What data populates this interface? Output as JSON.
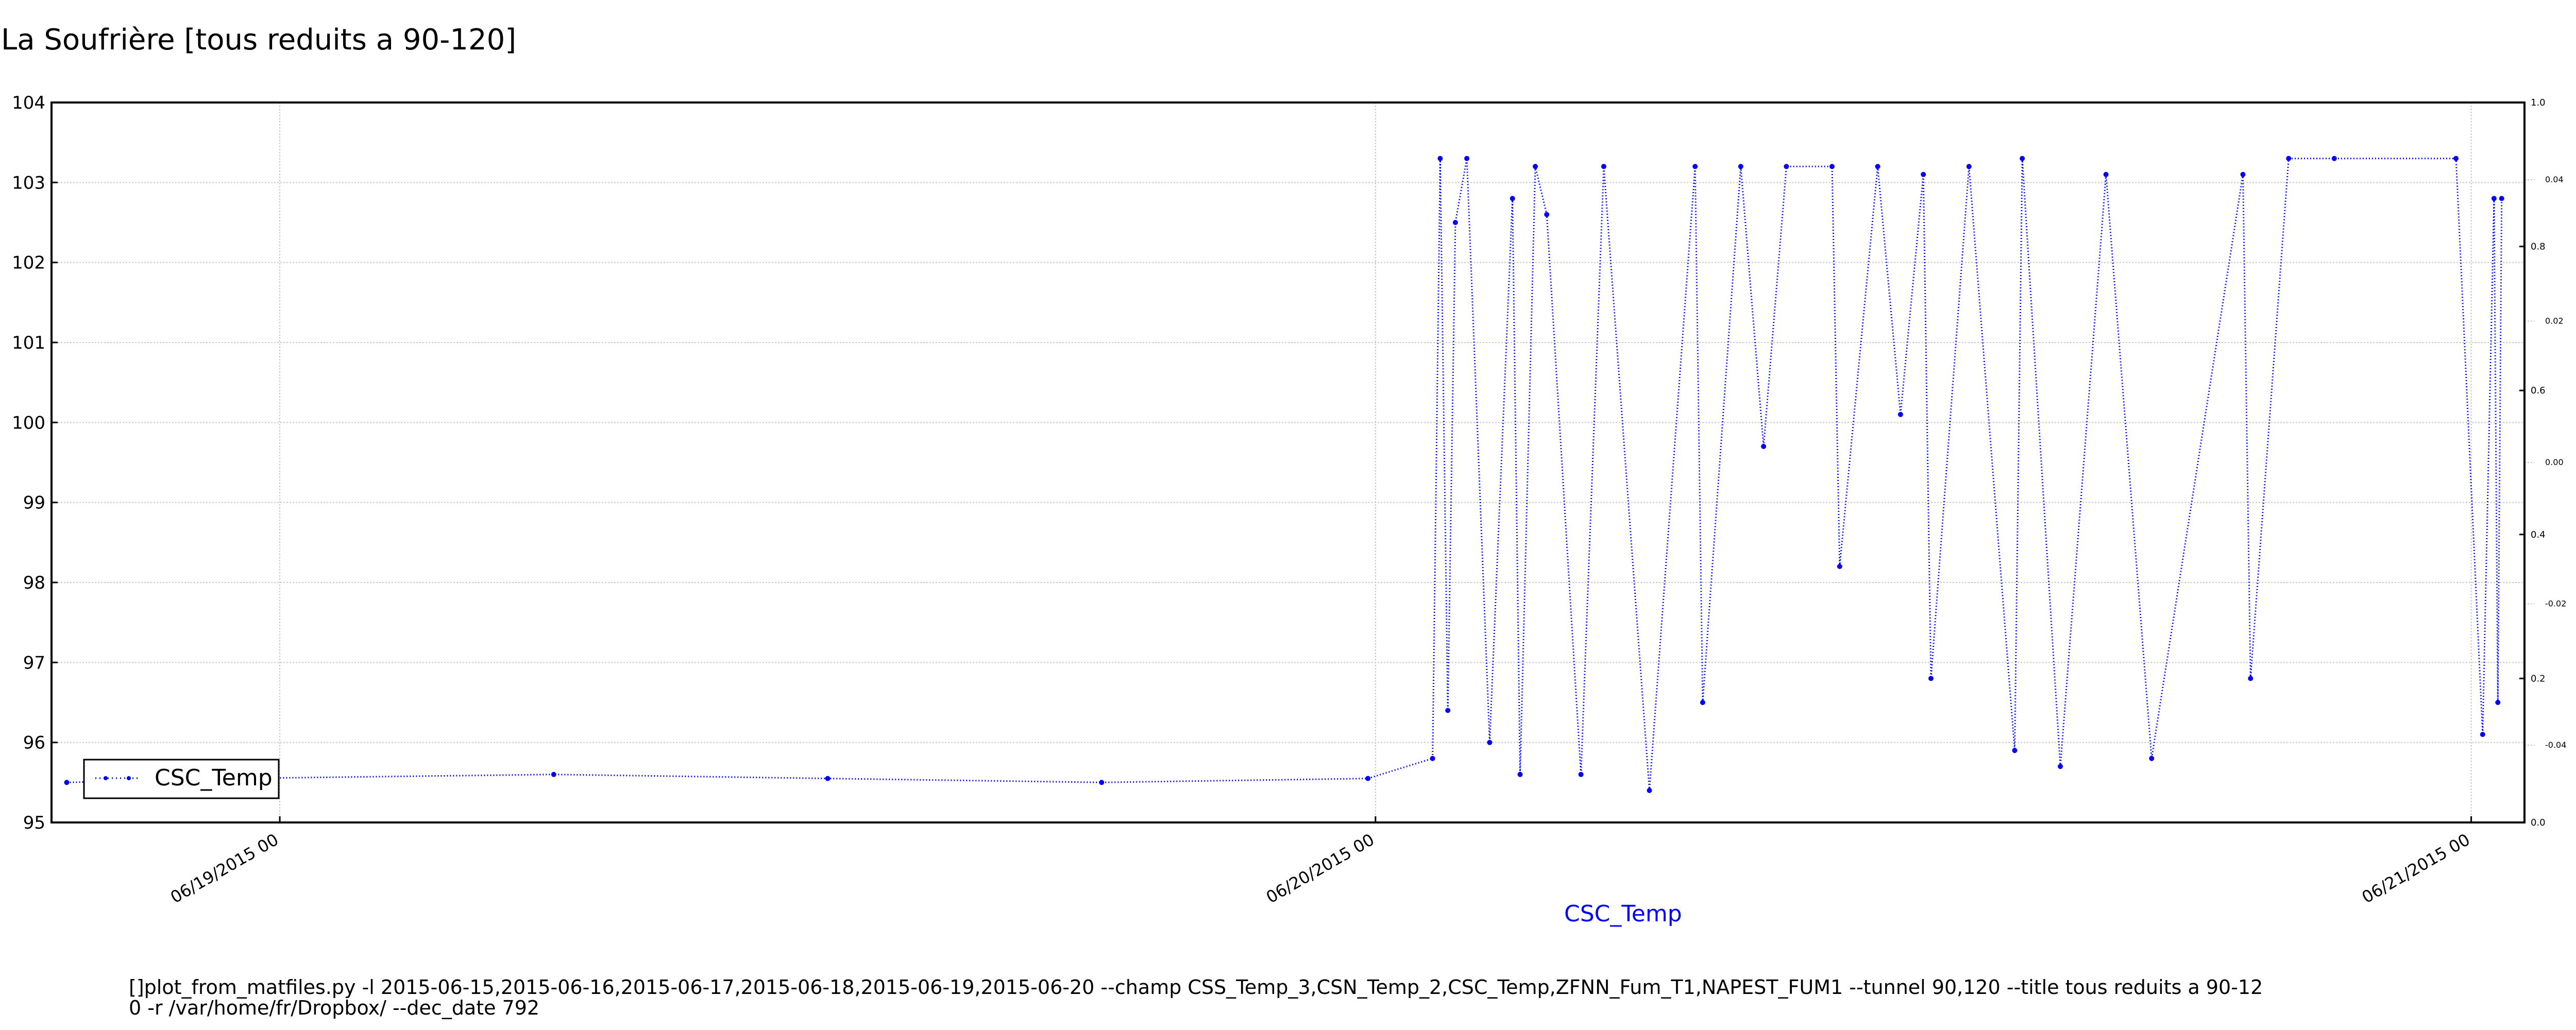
{
  "title": "La Soufrière [tous reduits a 90-120]",
  "colors": {
    "series": "#0000ff",
    "axis": "#000000",
    "grid": "#c8c8c8",
    "legend_text": "#000000"
  },
  "footer": {
    "line1": "[]plot_from_matfiles.py -l 2015-06-15,2015-06-16,2015-06-17,2015-06-18,2015-06-19,2015-06-20 --champ CSS_Temp_3,CSN_Temp_2,CSC_Temp,ZFNN_Fum_T1,NAPEST_FUM1 --tunnel 90,120 --title tous reduits a 90-12",
    "line2": "0 -r /var/home/fr/Dropbox/ --dec_date 792"
  },
  "chart_data": {
    "type": "line",
    "title": "La Soufrière [tous reduits a 90-120]",
    "xlabel": "CSC_Temp",
    "ylabel": "",
    "x_unit": "day (time axis)",
    "xlim": [
      "2015-06-18 19:00",
      "2015-06-21 01:10"
    ],
    "ylim": [
      95,
      104
    ],
    "yticks": [
      95,
      96,
      97,
      98,
      99,
      100,
      101,
      102,
      103,
      104
    ],
    "xticks": [
      {
        "x": "2015-06-19 00:00",
        "label": "06/19/2015 00"
      },
      {
        "x": "2015-06-20 00:00",
        "label": "06/20/2015 00"
      },
      {
        "x": "2015-06-21 00:00",
        "label": "06/21/2015 00"
      }
    ],
    "right_axis": {
      "ylim": [
        0.0,
        1.0
      ],
      "yticks": [
        "0.0",
        "0.2",
        "0.4",
        "0.6",
        "0.8",
        "1.0"
      ],
      "minor_labels": [
        "-0.04",
        "-0.02",
        "0.00",
        "0.02",
        "0.04"
      ]
    },
    "grid": true,
    "legend": {
      "position": "lower-left",
      "entries": [
        "CSC_Temp"
      ]
    },
    "series": [
      {
        "name": "CSC_Temp",
        "style": "dotted line with point markers",
        "x": [
          "2015-06-18 19:20",
          "2015-06-18 23:00",
          "2015-06-19 06:00",
          "2015-06-19 12:00",
          "2015-06-19 18:00",
          "2015-06-19 23:50",
          "2015-06-20 01:15",
          "2015-06-20 01:25",
          "2015-06-20 01:35",
          "2015-06-20 01:45",
          "2015-06-20 02:00",
          "2015-06-20 02:30",
          "2015-06-20 03:00",
          "2015-06-20 03:10",
          "2015-06-20 03:30",
          "2015-06-20 03:45",
          "2015-06-20 04:30",
          "2015-06-20 05:00",
          "2015-06-20 06:00",
          "2015-06-20 07:00",
          "2015-06-20 07:10",
          "2015-06-20 08:00",
          "2015-06-20 08:30",
          "2015-06-20 09:00",
          "2015-06-20 10:00",
          "2015-06-20 10:10",
          "2015-06-20 11:00",
          "2015-06-20 11:30",
          "2015-06-20 12:00",
          "2015-06-20 12:10",
          "2015-06-20 13:00",
          "2015-06-20 14:00",
          "2015-06-20 14:10",
          "2015-06-20 15:00",
          "2015-06-20 16:00",
          "2015-06-20 17:00",
          "2015-06-20 19:00",
          "2015-06-20 19:10",
          "2015-06-20 20:00",
          "2015-06-20 21:00",
          "2015-06-20 23:40",
          "2015-06-21 00:15",
          "2015-06-21 00:30",
          "2015-06-21 00:35",
          "2015-06-21 00:40"
        ],
        "values": [
          95.5,
          95.55,
          95.6,
          95.55,
          95.5,
          95.55,
          95.8,
          103.3,
          96.4,
          102.5,
          103.3,
          96.0,
          102.8,
          95.6,
          103.2,
          102.6,
          95.6,
          103.2,
          95.4,
          103.2,
          96.5,
          103.2,
          99.7,
          103.2,
          103.2,
          98.2,
          103.2,
          100.1,
          103.1,
          96.8,
          103.2,
          95.9,
          103.3,
          95.7,
          103.1,
          95.8,
          103.1,
          96.8,
          103.3,
          103.3,
          103.3,
          96.1,
          102.8,
          96.5,
          102.8
        ]
      }
    ]
  }
}
